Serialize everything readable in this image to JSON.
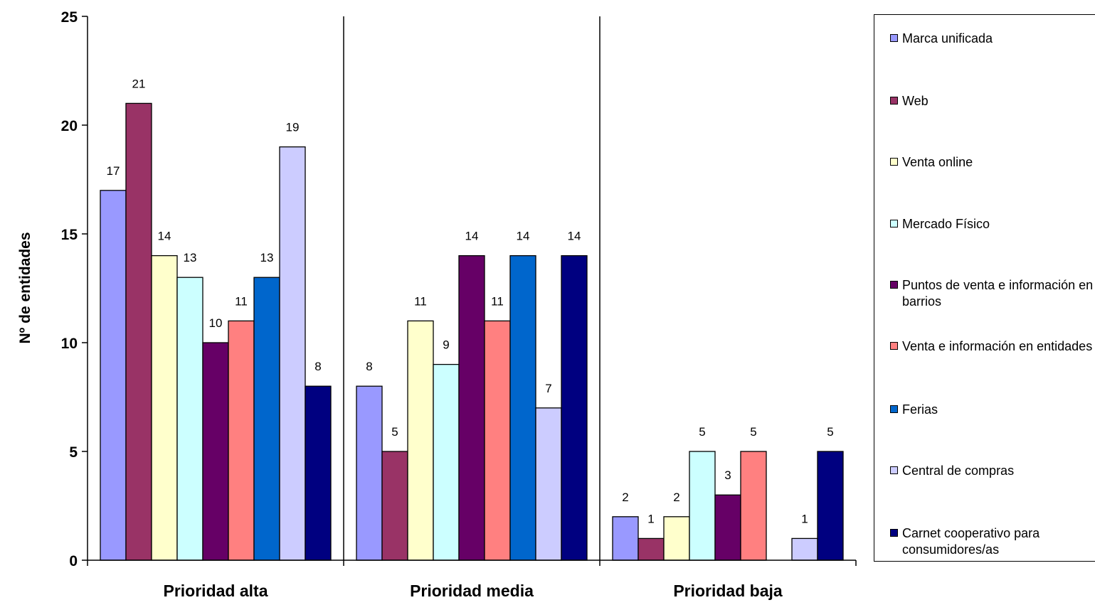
{
  "chart_data": {
    "type": "bar",
    "ylabel": "Nº de entidades",
    "xlabel": "",
    "ylim": [
      0,
      25
    ],
    "yticks": [
      0,
      5,
      10,
      15,
      20,
      25
    ],
    "legend_position": "right",
    "categories": [
      "Prioridad alta",
      "Prioridad media",
      "Prioridad baja"
    ],
    "series": [
      {
        "name": "Marca unificada",
        "color": "#9999FF",
        "values": [
          17,
          8,
          2
        ]
      },
      {
        "name": "Web",
        "color": "#993366",
        "values": [
          21,
          5,
          1
        ]
      },
      {
        "name": "Venta online",
        "color": "#FFFFCC",
        "values": [
          14,
          11,
          2
        ]
      },
      {
        "name": "Mercado Físico",
        "color": "#CCFFFF",
        "values": [
          13,
          9,
          5
        ]
      },
      {
        "name": "Puntos de venta e información en barrios",
        "color": "#660066",
        "values": [
          10,
          14,
          3
        ]
      },
      {
        "name": "Venta e información en entidades",
        "color": "#FF8080",
        "values": [
          11,
          11,
          5
        ]
      },
      {
        "name": "Ferias",
        "color": "#0066CC",
        "values": [
          13,
          14,
          null
        ]
      },
      {
        "name": "Central de compras",
        "color": "#CCCCFF",
        "values": [
          19,
          7,
          1
        ]
      },
      {
        "name": "Carnet cooperativo para consumidores/as",
        "color": "#000080",
        "values": [
          8,
          14,
          5
        ]
      }
    ]
  }
}
